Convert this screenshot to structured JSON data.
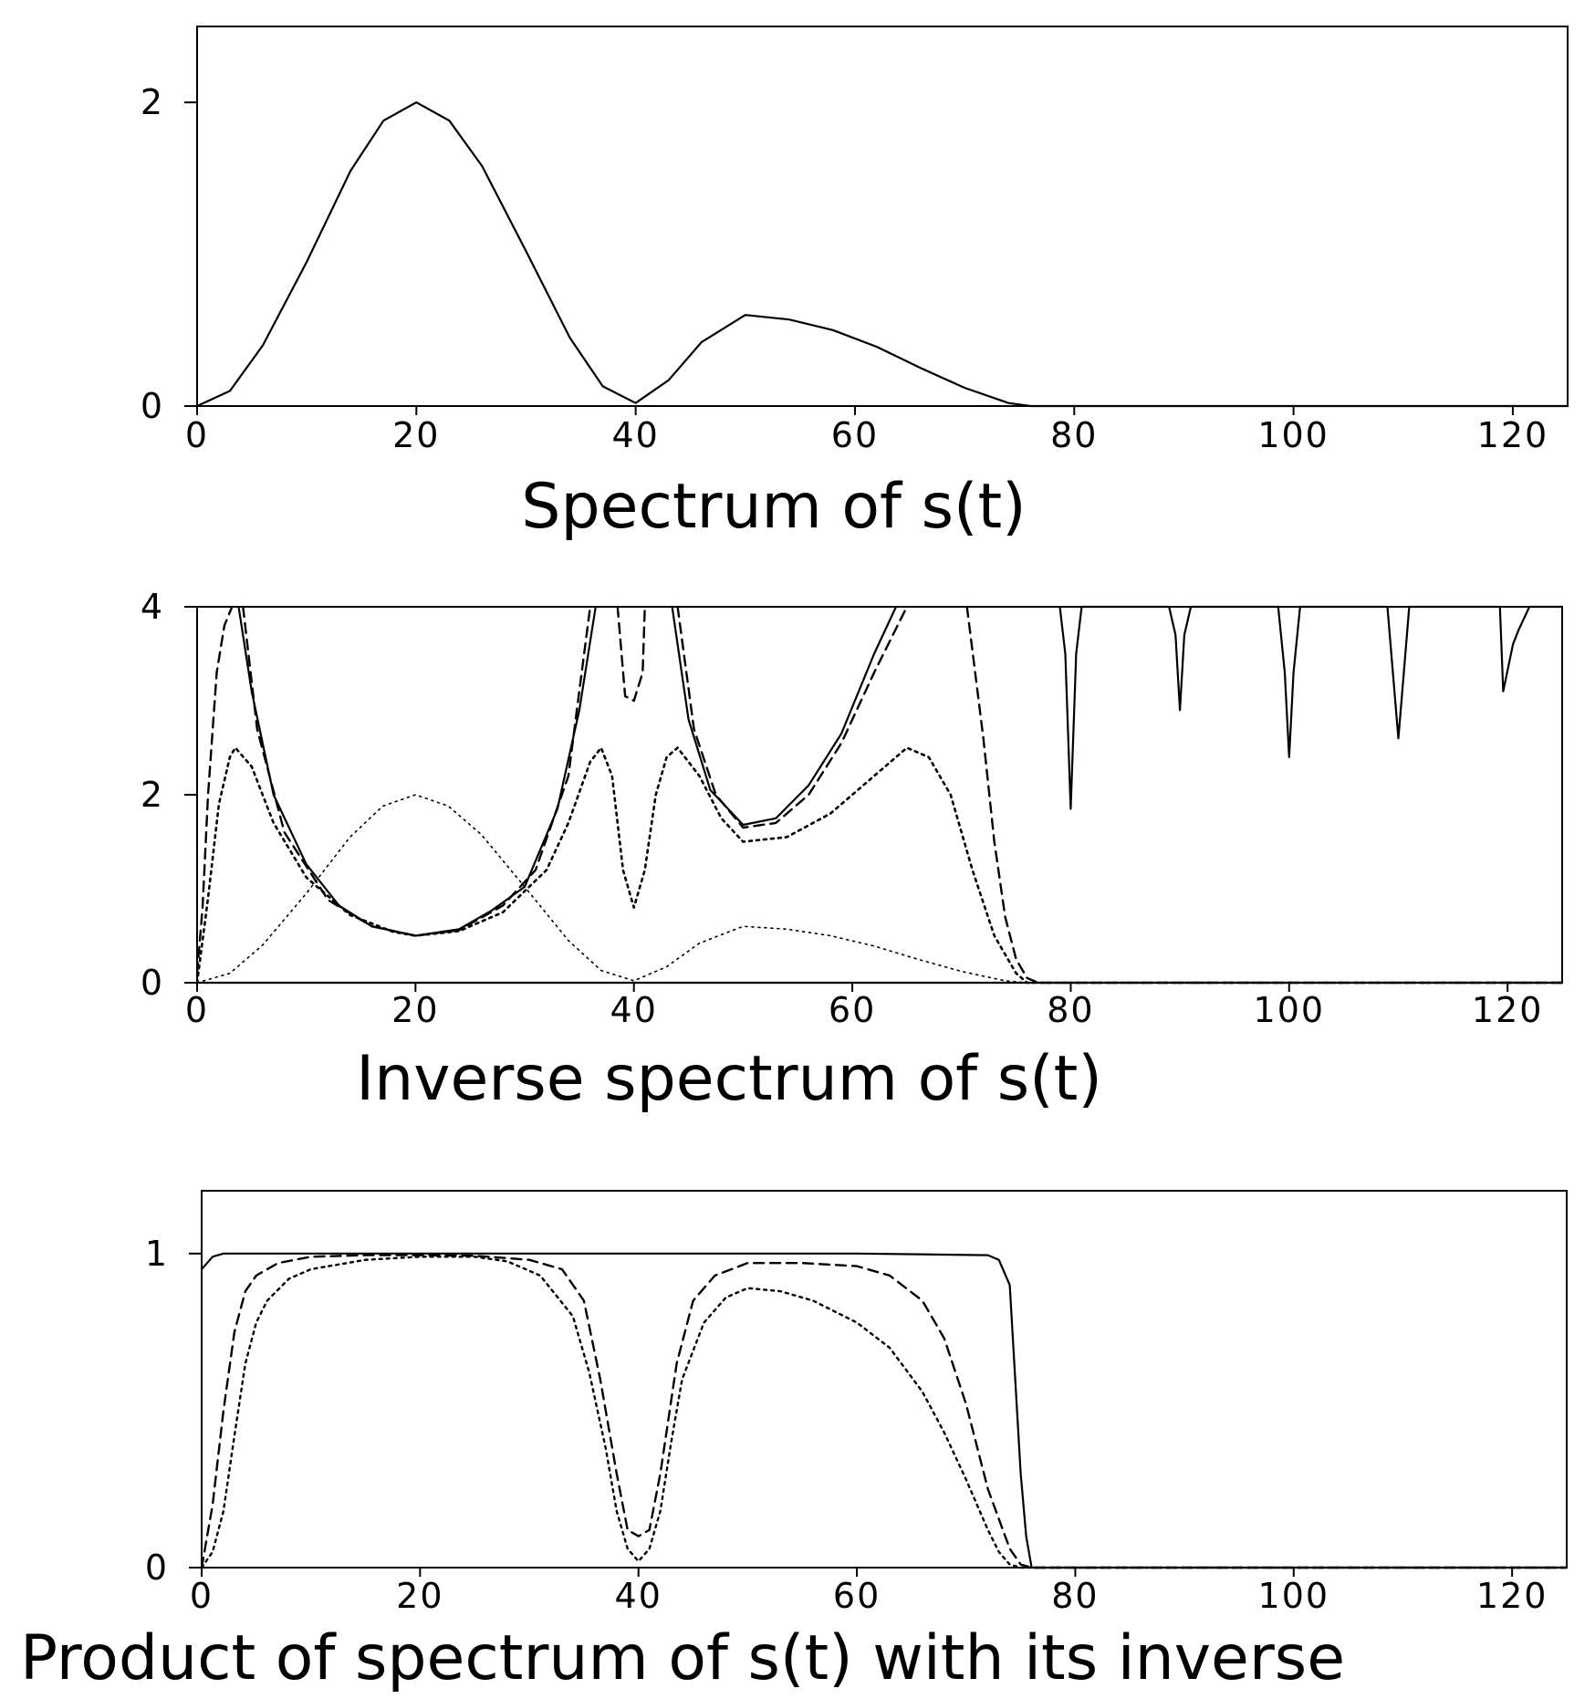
{
  "chart_data": [
    {
      "type": "line",
      "title": "Spectrum of s(t)",
      "xlabel": "",
      "ylabel": "",
      "xlim": [
        0,
        125
      ],
      "ylim": [
        0,
        2.5
      ],
      "x_ticks": [
        "0",
        "20",
        "40",
        "60",
        "80",
        "100",
        "120"
      ],
      "y_ticks": [
        "0",
        "2"
      ],
      "grid": false,
      "series": [
        {
          "style": "solid",
          "x": [
            0,
            3,
            6,
            10,
            14,
            17,
            20,
            23,
            26,
            30,
            34,
            37,
            40,
            43,
            46,
            50,
            54,
            58,
            62,
            66,
            70,
            74,
            76,
            80,
            100,
            125
          ],
          "y": [
            0,
            0.1,
            0.4,
            0.95,
            1.55,
            1.88,
            2.0,
            1.88,
            1.58,
            1.02,
            0.45,
            0.13,
            0.02,
            0.17,
            0.42,
            0.6,
            0.57,
            0.5,
            0.39,
            0.25,
            0.12,
            0.02,
            0,
            0,
            0,
            0
          ]
        }
      ]
    },
    {
      "type": "line",
      "title": "Inverse spectrum of s(t)",
      "xlabel": "",
      "ylabel": "",
      "xlim": [
        0,
        125
      ],
      "ylim": [
        0,
        4
      ],
      "x_ticks": [
        "0",
        "20",
        "40",
        "60",
        "80",
        "100",
        "120"
      ],
      "y_ticks": [
        "0",
        "2",
        "4"
      ],
      "grid": false,
      "series": [
        {
          "style": "solid",
          "x": [
            3.8,
            5,
            7,
            10,
            13,
            16,
            20,
            24,
            27,
            30,
            33,
            35,
            36.5
          ],
          "y": [
            4,
            3.1,
            2.0,
            1.26,
            0.82,
            0.6,
            0.5,
            0.57,
            0.77,
            1.02,
            1.85,
            2.9,
            4
          ]
        },
        {
          "style": "solid",
          "x": [
            43.5,
            45,
            47,
            50,
            53,
            56,
            59,
            62,
            64
          ],
          "y": [
            4,
            2.8,
            2.05,
            1.68,
            1.75,
            2.1,
            2.65,
            3.5,
            4
          ]
        },
        {
          "style": "solid",
          "x": [
            79,
            79.5,
            80,
            80.5,
            81,
            89,
            89.6,
            90,
            90.4,
            91,
            99,
            99.6,
            100,
            100.4,
            101,
            109,
            109.5,
            110,
            110.5,
            111,
            119.3,
            119.6,
            120.5,
            121,
            122,
            125
          ],
          "y": [
            4,
            3.5,
            1.85,
            3.5,
            4,
            4,
            3.7,
            2.9,
            3.7,
            4,
            4,
            3.3,
            2.4,
            3.3,
            4,
            4,
            3.3,
            2.6,
            3.3,
            4,
            4,
            3.1,
            3.6,
            3.75,
            4,
            4
          ]
        },
        {
          "style": "solid",
          "x": [
            0,
            20,
            40,
            60,
            76,
            78,
            80,
            90,
            100,
            110,
            120,
            125
          ],
          "y": [
            0,
            0,
            0,
            0,
            0,
            0,
            0,
            0,
            0,
            0,
            0,
            0
          ]
        },
        {
          "style": "dashed",
          "x": [
            0,
            0.5,
            1,
            1.8,
            2.5,
            3.2
          ],
          "y": [
            0.1,
            0.8,
            2.0,
            3.3,
            3.8,
            4
          ]
        },
        {
          "style": "dashed",
          "x": [
            4.2,
            5.5,
            8,
            12,
            16,
            20,
            24,
            28,
            31,
            34,
            36
          ],
          "y": [
            4,
            2.7,
            1.6,
            0.88,
            0.6,
            0.5,
            0.56,
            0.82,
            1.2,
            2.2,
            4
          ]
        },
        {
          "style": "dashed",
          "x": [
            38.5,
            39.2,
            40,
            40.8,
            41
          ],
          "y": [
            4,
            3.05,
            3.0,
            3.3,
            4
          ]
        },
        {
          "style": "dashed",
          "x": [
            44,
            45.5,
            47.5,
            50,
            53,
            56,
            59,
            62,
            65
          ],
          "y": [
            4,
            2.7,
            2.0,
            1.65,
            1.7,
            2.0,
            2.55,
            3.3,
            4
          ]
        },
        {
          "style": "dashed",
          "x": [
            70.5,
            72,
            73,
            74,
            75,
            76,
            77,
            80,
            100,
            125
          ],
          "y": [
            4,
            2.6,
            1.5,
            0.7,
            0.25,
            0.05,
            0,
            0,
            0,
            0
          ]
        },
        {
          "style": "dotted-coarse",
          "x": [
            0,
            1,
            2,
            3,
            3.5,
            5,
            7,
            10,
            14,
            18,
            20,
            24,
            28,
            32,
            34,
            36,
            37,
            38,
            39,
            40,
            41,
            42,
            43,
            44,
            46,
            48,
            50,
            54,
            58,
            62,
            65,
            67,
            69,
            71,
            73,
            75,
            76,
            80,
            125
          ],
          "y": [
            0,
            0.9,
            1.9,
            2.4,
            2.5,
            2.3,
            1.7,
            1.12,
            0.72,
            0.54,
            0.5,
            0.55,
            0.75,
            1.2,
            1.7,
            2.35,
            2.5,
            2.2,
            1.2,
            0.8,
            1.2,
            2.0,
            2.4,
            2.5,
            2.2,
            1.75,
            1.5,
            1.55,
            1.8,
            2.2,
            2.5,
            2.4,
            2.0,
            1.2,
            0.5,
            0.1,
            0,
            0,
            0
          ]
        },
        {
          "style": "dotted-fine",
          "x": [
            0,
            3,
            6,
            10,
            14,
            17,
            20,
            23,
            26,
            30,
            34,
            37,
            40,
            43,
            46,
            50,
            54,
            58,
            62,
            66,
            70,
            74,
            76,
            80,
            125
          ],
          "y": [
            0,
            0.1,
            0.4,
            0.95,
            1.55,
            1.88,
            2.0,
            1.88,
            1.58,
            1.02,
            0.45,
            0.13,
            0.02,
            0.17,
            0.42,
            0.6,
            0.57,
            0.5,
            0.39,
            0.25,
            0.12,
            0.02,
            0,
            0,
            0
          ]
        }
      ]
    },
    {
      "type": "line",
      "title": "Product of spectrum of s(t) with its inverse",
      "xlabel": "",
      "ylabel": "",
      "xlim": [
        0,
        125
      ],
      "ylim": [
        0,
        1.2
      ],
      "x_ticks": [
        "0",
        "20",
        "40",
        "60",
        "80",
        "100",
        "120"
      ],
      "y_ticks": [
        "0",
        "1"
      ],
      "grid": false,
      "series": [
        {
          "style": "solid",
          "x": [
            0,
            0.5,
            1,
            2,
            5,
            20,
            40,
            60,
            72,
            73,
            74,
            74.5,
            75,
            75.5,
            76,
            80,
            100,
            125
          ],
          "y": [
            0.95,
            0.97,
            0.99,
            1.0,
            1.0,
            1.0,
            1.0,
            1.0,
            0.995,
            0.98,
            0.9,
            0.6,
            0.3,
            0.1,
            0,
            0,
            0,
            0
          ]
        },
        {
          "style": "dashed",
          "x": [
            0,
            1,
            2,
            3,
            4,
            5,
            7,
            10,
            15,
            20,
            25,
            30,
            33,
            35,
            36.5,
            38,
            39,
            40,
            41,
            42,
            43.5,
            45,
            47,
            50,
            55,
            60,
            63,
            66,
            68,
            70,
            72,
            74,
            75,
            76,
            80,
            125
          ],
          "y": [
            0,
            0.2,
            0.5,
            0.75,
            0.88,
            0.93,
            0.97,
            0.99,
            0.995,
            0.995,
            0.993,
            0.98,
            0.95,
            0.85,
            0.6,
            0.3,
            0.12,
            0.1,
            0.12,
            0.3,
            0.65,
            0.85,
            0.93,
            0.97,
            0.97,
            0.96,
            0.93,
            0.85,
            0.73,
            0.52,
            0.25,
            0.06,
            0.01,
            0,
            0,
            0
          ]
        },
        {
          "style": "dotted",
          "x": [
            0,
            1,
            2,
            3,
            4,
            5,
            6,
            8,
            10,
            15,
            20,
            25,
            28,
            31,
            34,
            35.5,
            37,
            38,
            39,
            40,
            41,
            42,
            43,
            44,
            46,
            48,
            50,
            53,
            56,
            60,
            63,
            66,
            68,
            70,
            72,
            73,
            74,
            75,
            76,
            80,
            125
          ],
          "y": [
            0,
            0.05,
            0.18,
            0.42,
            0.65,
            0.78,
            0.85,
            0.92,
            0.95,
            0.98,
            0.99,
            0.99,
            0.975,
            0.93,
            0.8,
            0.62,
            0.38,
            0.18,
            0.06,
            0.02,
            0.06,
            0.18,
            0.4,
            0.6,
            0.78,
            0.86,
            0.89,
            0.88,
            0.85,
            0.78,
            0.7,
            0.56,
            0.43,
            0.28,
            0.12,
            0.05,
            0.01,
            0,
            0,
            0,
            0
          ]
        }
      ]
    }
  ]
}
